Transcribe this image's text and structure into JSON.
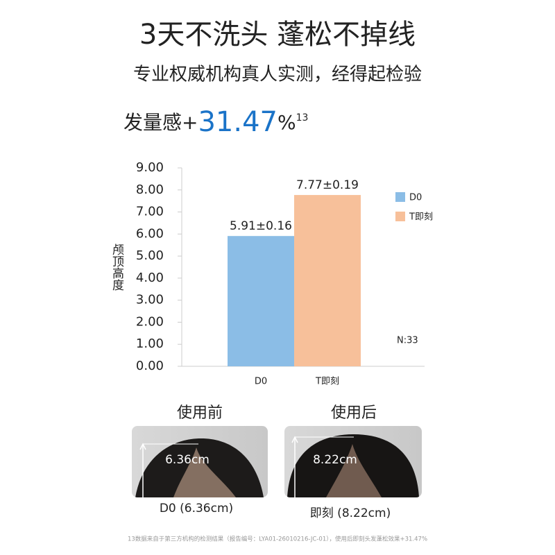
{
  "title": "3天不洗头 蓬松不掉线",
  "subtitle": "专业权威机构真人实测，经得起检验",
  "headline": {
    "prefix": "发量感+",
    "value": 31.47,
    "unit": "%",
    "note": "13"
  },
  "chart_data": {
    "type": "bar",
    "categories": [
      "D0",
      "T即刻"
    ],
    "values": [
      5.91,
      7.77
    ],
    "value_labels": [
      "5.91±0.16",
      "7.77±0.19"
    ],
    "colors": [
      "#8bbde6",
      "#f7c09a"
    ],
    "ylabel": "颅顶高度",
    "ylim": [
      0,
      9
    ],
    "yticks": [
      {
        "value": 0,
        "label": "0.00"
      },
      {
        "value": 1,
        "label": "1.00"
      },
      {
        "value": 2,
        "label": "2.00"
      },
      {
        "value": 3,
        "label": "3.00"
      },
      {
        "value": 4,
        "label": "4.00"
      },
      {
        "value": 5,
        "label": "5.00"
      },
      {
        "value": 6,
        "label": "6.00"
      },
      {
        "value": 7,
        "label": "7.00"
      },
      {
        "value": 8,
        "label": "8.00"
      },
      {
        "value": 9,
        "label": "9.00"
      }
    ],
    "legend": "right",
    "annotation": "N:33"
  },
  "photos": [
    {
      "label": "使用前",
      "measure": "6.36cm",
      "caption": "D0 (6.36cm)"
    },
    {
      "label": "使用后",
      "measure": "8.22cm",
      "caption": "即刻 (8.22cm)"
    }
  ],
  "footnote": "13数据来自于第三方机构的检测结果（报告编号：LYA01-26010216-JC-01），使用后即刻头发蓬松效果+31.47%"
}
